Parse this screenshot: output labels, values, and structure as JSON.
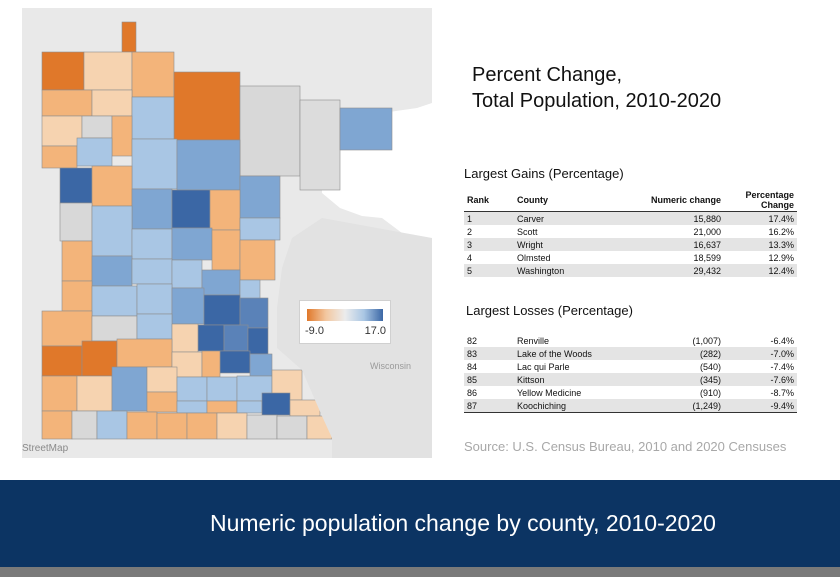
{
  "title": {
    "line1": "Percent Change,",
    "line2": "Total Population, 2010-2020"
  },
  "map": {
    "attribution": "StreetMap",
    "state_label": "Wisconsin",
    "legend": {
      "min": "-9.0",
      "max": "17.0"
    },
    "colors": {
      "strong_negative": "#e0782a",
      "negative": "#f3b47a",
      "light_negative": "#f6d3b0",
      "neutral": "#d8d8d8",
      "light_positive": "#a9c6e4",
      "positive": "#7fa6d2",
      "strong_positive": "#3b67a5"
    }
  },
  "gains": {
    "heading": "Largest Gains (Percentage)",
    "columns": [
      "Rank",
      "County",
      "Numeric change",
      "Percentage Change"
    ],
    "rows": [
      [
        "1",
        "Carver",
        "15,880",
        "17.4%"
      ],
      [
        "2",
        "Scott",
        "21,000",
        "16.2%"
      ],
      [
        "3",
        "Wright",
        "16,637",
        "13.3%"
      ],
      [
        "4",
        "Olmsted",
        "18,599",
        "12.9%"
      ],
      [
        "5",
        "Washington",
        "29,432",
        "12.4%"
      ]
    ]
  },
  "losses": {
    "heading": "Largest Losses (Percentage)",
    "rows": [
      [
        "82",
        "Renville",
        "(1,007)",
        "-6.4%"
      ],
      [
        "83",
        "Lake of the Woods",
        "(282)",
        "-7.0%"
      ],
      [
        "84",
        "Lac qui Parle",
        "(540)",
        "-7.4%"
      ],
      [
        "85",
        "Kittson",
        "(345)",
        "-7.6%"
      ],
      [
        "86",
        "Yellow Medicine",
        "(910)",
        "-8.7%"
      ],
      [
        "87",
        "Koochiching",
        "(1,249)",
        "-9.4%"
      ]
    ]
  },
  "source": "Source: U.S. Census Bureau, 2010 and 2020 Censuses",
  "banner": "Numeric population change by county, 2010-2020"
}
